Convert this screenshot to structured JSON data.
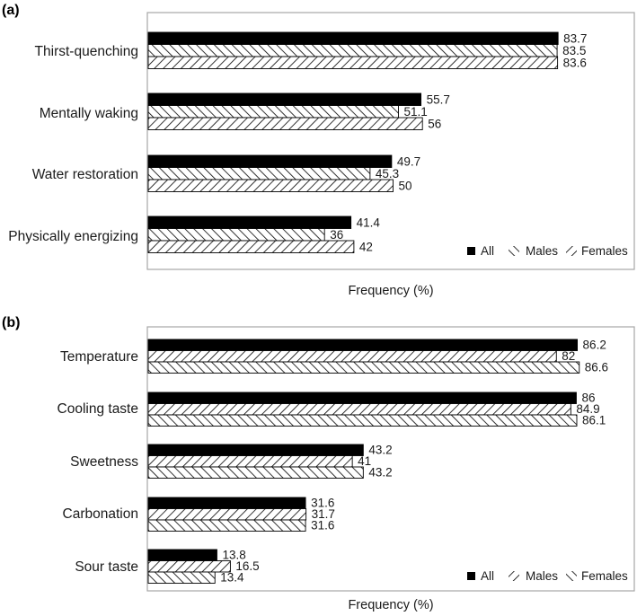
{
  "chart_data": [
    {
      "panel": "(a)",
      "type": "bar",
      "orientation": "horizontal",
      "categories": [
        "Thirst-quenching",
        "Mentally waking",
        "Water restoration",
        "Physically energizing"
      ],
      "series": [
        {
          "name": "All",
          "values": [
            83.7,
            55.7,
            49.7,
            41.4
          ],
          "pattern": "solid"
        },
        {
          "name": "Males",
          "values": [
            83.5,
            51.1,
            45.3,
            36
          ],
          "pattern": "backslash"
        },
        {
          "name": "Females",
          "values": [
            83.6,
            56,
            50,
            42
          ],
          "pattern": "slash"
        }
      ],
      "value_labels": [
        [
          "83.7",
          "55.7",
          "49.7",
          "41.4"
        ],
        [
          "83.5",
          "51.1",
          "45.3",
          "36"
        ],
        [
          "83.6",
          "56",
          "50",
          "42"
        ]
      ],
      "xlabel": "Frequency (%)",
      "xlim": [
        0,
        100
      ],
      "legend": "bottom-right",
      "grid": false
    },
    {
      "panel": "(b)",
      "type": "bar",
      "orientation": "horizontal",
      "categories": [
        "Temperature",
        "Cooling taste",
        "Sweetness",
        "Carbonation",
        "Sour taste"
      ],
      "series": [
        {
          "name": "All",
          "values": [
            86.2,
            86,
            43.2,
            31.6,
            13.8
          ],
          "pattern": "solid"
        },
        {
          "name": "Males",
          "values": [
            82,
            84.9,
            41,
            31.7,
            16.5
          ],
          "pattern": "slash"
        },
        {
          "name": "Females",
          "values": [
            86.6,
            86.1,
            43.2,
            31.6,
            13.4
          ],
          "pattern": "backslash"
        }
      ],
      "value_labels": [
        [
          "86.2",
          "86",
          "43.2",
          "31.6",
          "13.8"
        ],
        [
          "82",
          "84.9",
          "41",
          "31.7",
          "16.5"
        ],
        [
          "86.6",
          "86.1",
          "43.2",
          "31.6",
          "13.4"
        ]
      ],
      "xlabel": "Frequency (%)",
      "xlim": [
        0,
        100
      ],
      "legend": "bottom-right",
      "grid": false
    }
  ],
  "colors": {
    "bar_fill": "#000000",
    "hatch": "#000000",
    "frame": "#a6a6a6",
    "text": "#1a1a1a"
  }
}
